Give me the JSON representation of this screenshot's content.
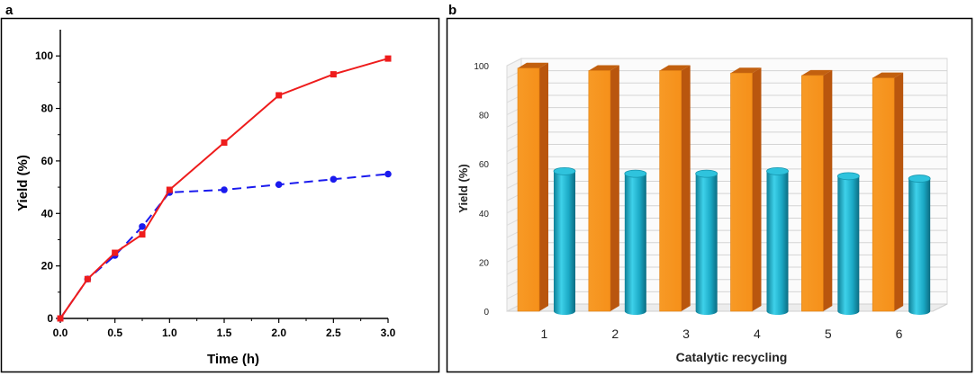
{
  "panels": {
    "a": "a",
    "b": "b"
  },
  "chart_data": [
    {
      "type": "line",
      "panel": "a",
      "title": "",
      "xlabel": "Time (h)",
      "ylabel": "Yield (%)",
      "xlim": [
        0,
        3.0
      ],
      "ylim": [
        0,
        110
      ],
      "x_ticks": [
        "0.0",
        "0.5",
        "1.0",
        "1.5",
        "2.0",
        "2.5",
        "3.0"
      ],
      "y_ticks": [
        "0",
        "20",
        "40",
        "60",
        "80",
        "100"
      ],
      "grid": false,
      "series": [
        {
          "name": "series-red",
          "color": "#ee1c1c",
          "marker": "square",
          "line": "solid",
          "x": [
            0,
            0.25,
            0.5,
            0.75,
            1.0,
            1.5,
            2.0,
            2.5,
            3.0
          ],
          "y": [
            0,
            15,
            25,
            32,
            49,
            67,
            85,
            93,
            99
          ]
        },
        {
          "name": "series-blue",
          "color": "#1a1aee",
          "marker": "circle",
          "line": "dashed",
          "x": [
            0,
            0.25,
            0.5,
            0.75,
            1.0,
            1.5,
            2.0,
            2.5,
            3.0
          ],
          "y": [
            0,
            15,
            24,
            35,
            48,
            49,
            51,
            53,
            55
          ]
        }
      ]
    },
    {
      "type": "bar",
      "panel": "b",
      "style": "3d",
      "title": "",
      "xlabel": "Catalytic recycling",
      "ylabel": "Yield (%)",
      "ylim": [
        0,
        100
      ],
      "y_ticks": [
        "0",
        "20",
        "40",
        "60",
        "80",
        "100"
      ],
      "grid": true,
      "categories": [
        "1",
        "2",
        "3",
        "4",
        "5",
        "6"
      ],
      "series": [
        {
          "name": "series-orange",
          "shape": "box",
          "color": "#f7941d",
          "values": [
            99,
            98,
            98,
            97,
            96,
            95
          ]
        },
        {
          "name": "series-cyan",
          "shape": "cylinder",
          "color": "#1fb3cf",
          "values": [
            57,
            56,
            56,
            57,
            55,
            54
          ]
        }
      ]
    }
  ]
}
